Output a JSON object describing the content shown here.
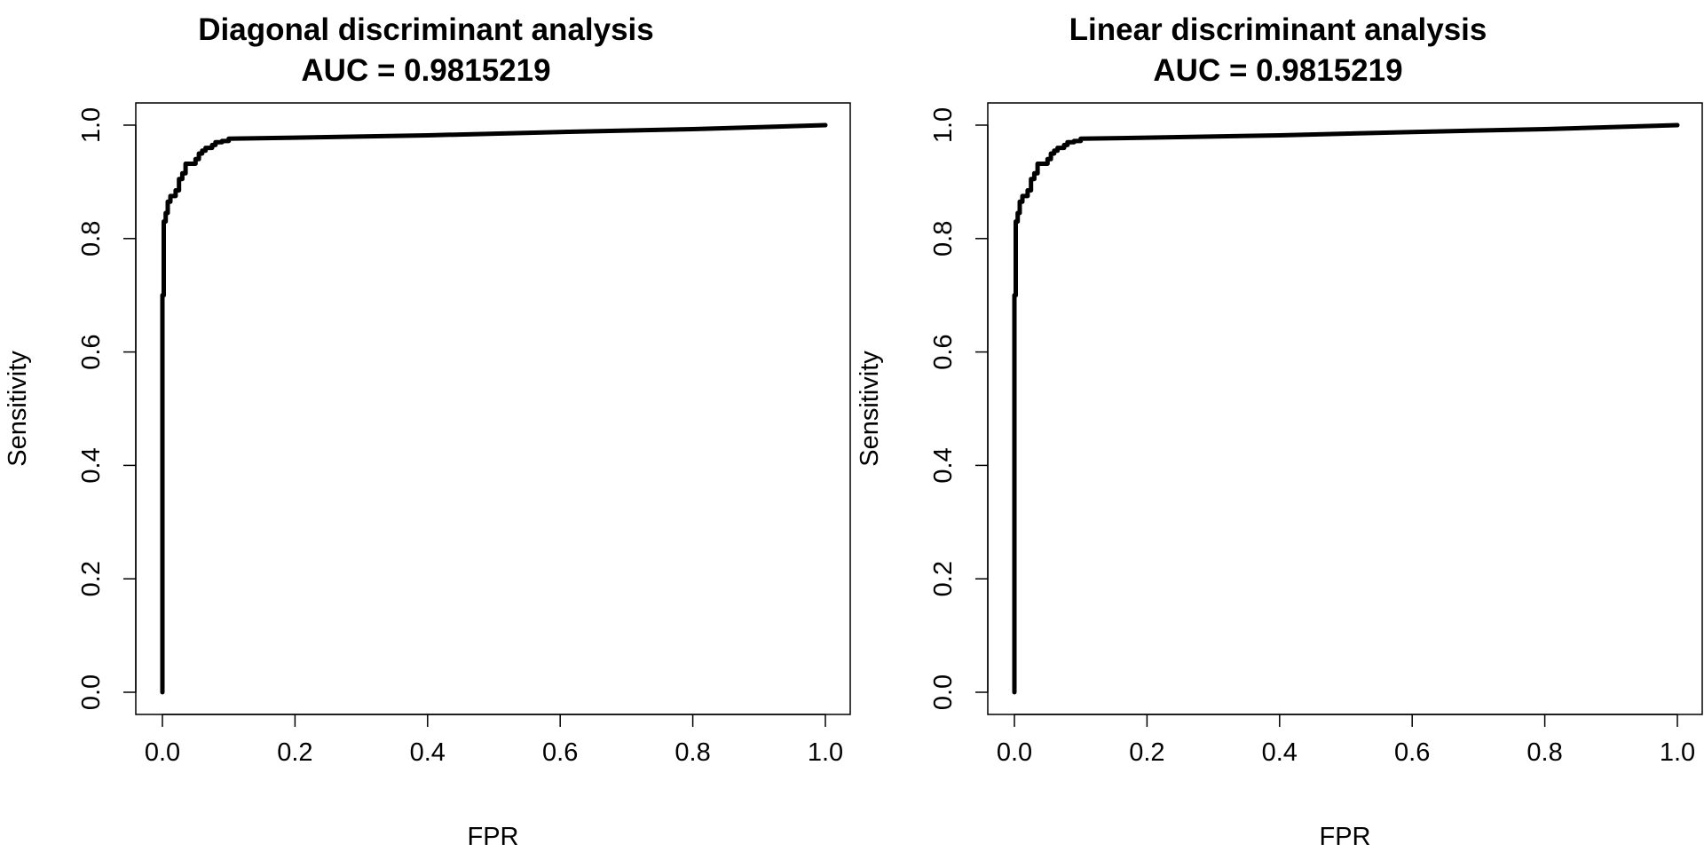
{
  "chart_data": [
    {
      "type": "line",
      "title": "Diagonal discriminant analysis",
      "subtitle": "AUC = 0.9815219",
      "xlabel": "FPR",
      "ylabel": "Sensitivity",
      "xlim": [
        0,
        1
      ],
      "ylim": [
        0,
        1
      ],
      "xticks": [
        "0.0",
        "0.2",
        "0.4",
        "0.6",
        "0.8",
        "1.0"
      ],
      "yticks": [
        "0.0",
        "0.2",
        "0.4",
        "0.6",
        "0.8",
        "1.0"
      ],
      "grid": false,
      "series": [
        {
          "color": "#000000",
          "x": [
            0,
            0,
            0.002,
            0.002,
            0.005,
            0.005,
            0.008,
            0.008,
            0.012,
            0.012,
            0.02,
            0.02,
            0.025,
            0.025,
            0.03,
            0.03,
            0.035,
            0.035,
            0.05,
            0.05,
            0.055,
            0.055,
            0.06,
            0.06,
            0.065,
            0.065,
            0.075,
            0.075,
            0.08,
            0.08,
            0.09,
            0.09,
            0.1,
            0.1,
            0.2,
            0.4,
            0.6,
            0.8,
            1.0
          ],
          "y": [
            0,
            0.7,
            0.7,
            0.83,
            0.83,
            0.845,
            0.845,
            0.865,
            0.865,
            0.875,
            0.875,
            0.885,
            0.885,
            0.905,
            0.905,
            0.915,
            0.915,
            0.932,
            0.932,
            0.94,
            0.94,
            0.95,
            0.95,
            0.955,
            0.955,
            0.96,
            0.96,
            0.965,
            0.965,
            0.97,
            0.97,
            0.972,
            0.972,
            0.976,
            0.978,
            0.982,
            0.988,
            0.993,
            1.0
          ]
        }
      ]
    },
    {
      "type": "line",
      "title": "Linear discriminant analysis",
      "subtitle": "AUC = 0.9815219",
      "xlabel": "FPR",
      "ylabel": "Sensitivity",
      "xlim": [
        0,
        1
      ],
      "ylim": [
        0,
        1
      ],
      "xticks": [
        "0.0",
        "0.2",
        "0.4",
        "0.6",
        "0.8",
        "1.0"
      ],
      "yticks": [
        "0.0",
        "0.2",
        "0.4",
        "0.6",
        "0.8",
        "1.0"
      ],
      "grid": false,
      "series": [
        {
          "color": "#000000",
          "x": [
            0,
            0,
            0.002,
            0.002,
            0.005,
            0.005,
            0.008,
            0.008,
            0.012,
            0.012,
            0.02,
            0.02,
            0.025,
            0.025,
            0.03,
            0.03,
            0.035,
            0.035,
            0.05,
            0.05,
            0.055,
            0.055,
            0.06,
            0.06,
            0.065,
            0.065,
            0.075,
            0.075,
            0.08,
            0.08,
            0.09,
            0.09,
            0.1,
            0.1,
            0.2,
            0.4,
            0.6,
            0.8,
            1.0
          ],
          "y": [
            0,
            0.7,
            0.7,
            0.83,
            0.83,
            0.845,
            0.845,
            0.865,
            0.865,
            0.875,
            0.875,
            0.885,
            0.885,
            0.905,
            0.905,
            0.915,
            0.915,
            0.932,
            0.932,
            0.94,
            0.94,
            0.95,
            0.95,
            0.955,
            0.955,
            0.96,
            0.96,
            0.965,
            0.965,
            0.97,
            0.97,
            0.972,
            0.972,
            0.976,
            0.978,
            0.982,
            0.988,
            0.993,
            1.0
          ]
        }
      ]
    }
  ]
}
